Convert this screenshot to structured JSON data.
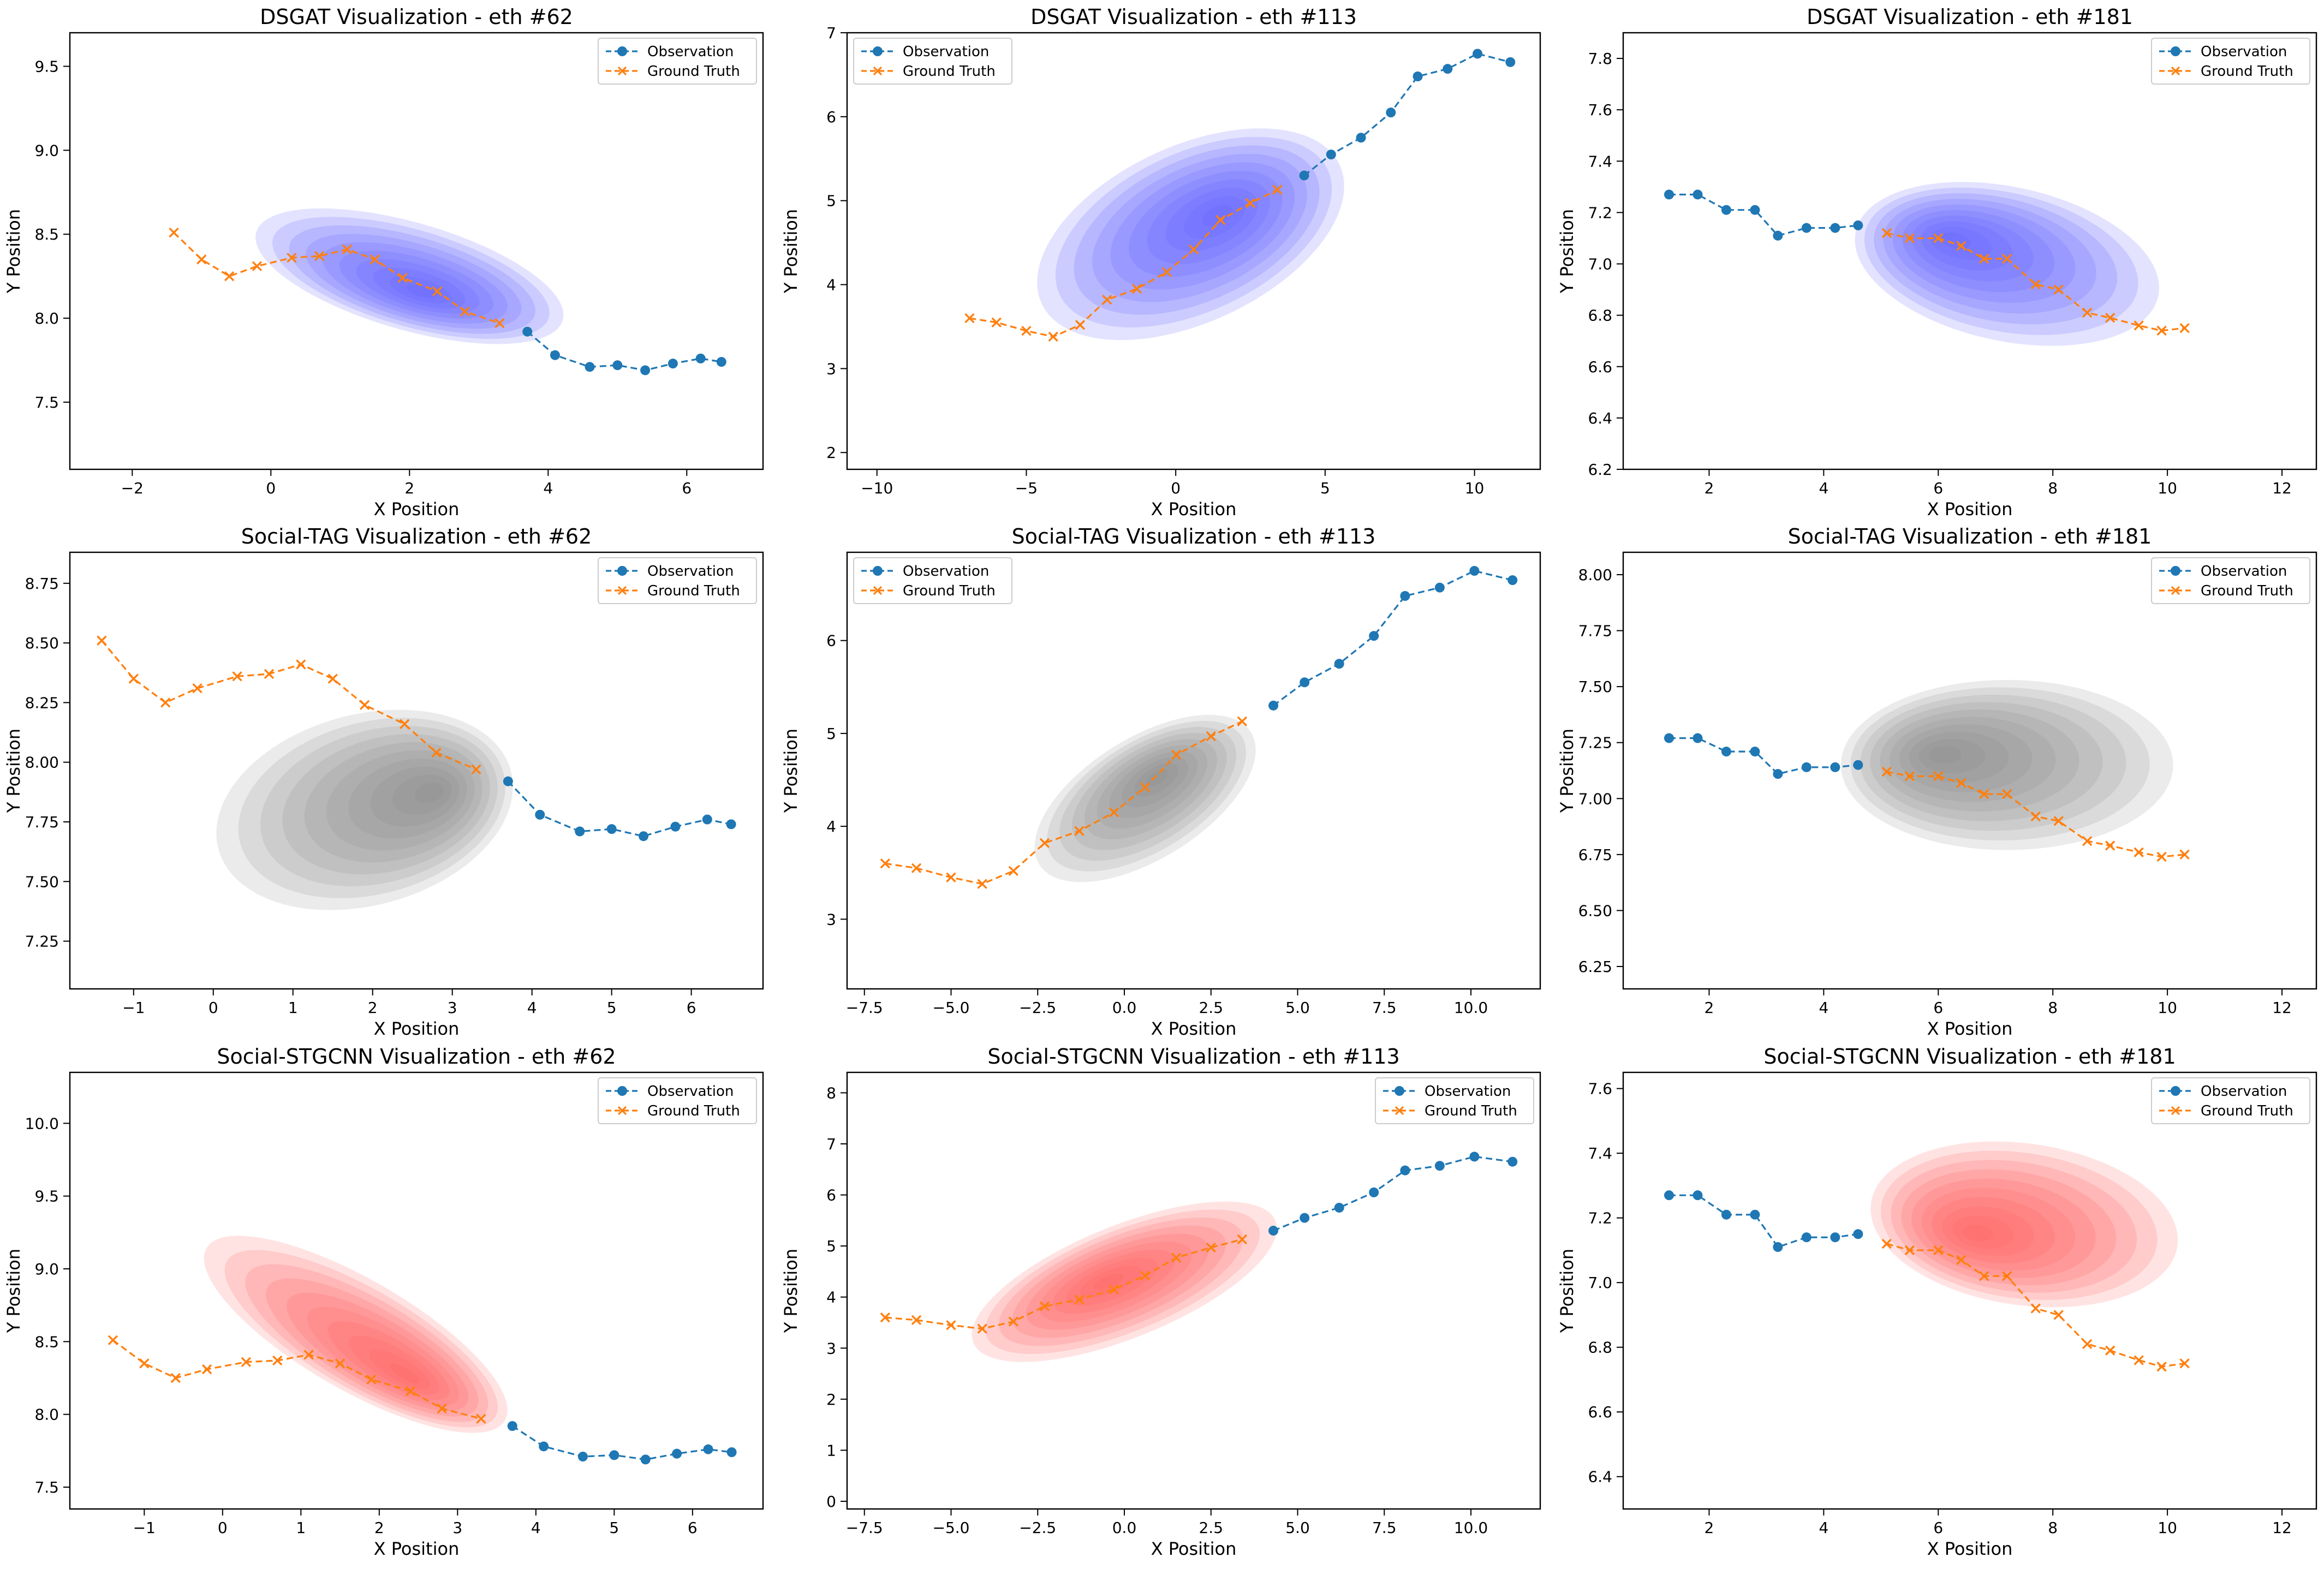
{
  "figure": {
    "observation_color": "#1f77b4",
    "ground_truth_color": "#ff7f0e"
  },
  "chart_data": [
    {
      "type": "line",
      "title": "DSGAT Visualization - eth #62",
      "xlabel": "X Position",
      "ylabel": "Y Position",
      "xlim": [
        -2.9,
        7.1
      ],
      "ylim": [
        7.1,
        9.7
      ],
      "xticks": [
        "−2",
        "0",
        "2",
        "4",
        "6"
      ],
      "xtick_values": [
        -2,
        0,
        2,
        4,
        6
      ],
      "yticks": [
        "7.5",
        "8.0",
        "8.5",
        "9.0",
        "9.5"
      ],
      "ytick_values": [
        7.5,
        8.0,
        8.5,
        9.0,
        9.5
      ],
      "density_color": "#5b5bff",
      "density": {
        "cx": 2.0,
        "cy": 8.25,
        "sx": 2.3,
        "sy": 0.32,
        "rot": -16,
        "peak": [
          2.2,
          8.15
        ]
      },
      "legend": {
        "position": "top-right",
        "entries": [
          "Observation",
          "Ground Truth"
        ]
      },
      "series": [
        {
          "name": "Observation",
          "marker": "o",
          "x": [
            3.7,
            4.1,
            4.6,
            5.0,
            5.4,
            5.8,
            6.2,
            6.5
          ],
          "y": [
            7.92,
            7.78,
            7.71,
            7.72,
            7.69,
            7.73,
            7.76,
            7.74
          ]
        },
        {
          "name": "Ground Truth",
          "marker": "x",
          "x": [
            -1.4,
            -1.0,
            -0.6,
            -0.2,
            0.3,
            0.7,
            1.1,
            1.5,
            1.9,
            2.4,
            2.8,
            3.3
          ],
          "y": [
            8.51,
            8.35,
            8.25,
            8.31,
            8.36,
            8.37,
            8.41,
            8.35,
            8.24,
            8.16,
            8.04,
            7.97
          ]
        }
      ]
    },
    {
      "type": "line",
      "title": "DSGAT Visualization - eth #113",
      "xlabel": "X Position",
      "ylabel": "Y Position",
      "xlim": [
        -11,
        12.2
      ],
      "ylim": [
        1.8,
        7.0
      ],
      "xticks": [
        "−10",
        "−5",
        "0",
        "5",
        "10"
      ],
      "xtick_values": [
        -10,
        -5,
        0,
        5,
        10
      ],
      "yticks": [
        "2",
        "3",
        "4",
        "5",
        "6",
        "7"
      ],
      "ytick_values": [
        2,
        3,
        4,
        5,
        6,
        7
      ],
      "density_color": "#5b5bff",
      "density": {
        "cx": 0.5,
        "cy": 4.6,
        "sx": 5.5,
        "sy": 1.05,
        "rot": 25,
        "peak": [
          1.5,
          4.85
        ]
      },
      "legend": {
        "position": "top-left",
        "entries": [
          "Observation",
          "Ground Truth"
        ]
      },
      "series": [
        {
          "name": "Observation",
          "marker": "o",
          "x": [
            4.3,
            5.2,
            6.2,
            7.2,
            8.1,
            9.1,
            10.1,
            11.2
          ],
          "y": [
            5.3,
            5.55,
            5.75,
            6.05,
            6.48,
            6.57,
            6.75,
            6.65
          ]
        },
        {
          "name": "Ground Truth",
          "marker": "x",
          "x": [
            -6.9,
            -6.0,
            -5.0,
            -4.1,
            -3.2,
            -2.3,
            -1.3,
            -0.3,
            0.6,
            1.5,
            2.5,
            3.4
          ],
          "y": [
            3.6,
            3.55,
            3.45,
            3.38,
            3.52,
            3.82,
            3.95,
            4.15,
            4.42,
            4.77,
            4.97,
            5.13
          ]
        }
      ]
    },
    {
      "type": "line",
      "title": "DSGAT Visualization - eth #181",
      "xlabel": "X Position",
      "ylabel": "Y Position",
      "xlim": [
        0.5,
        12.6
      ],
      "ylim": [
        6.2,
        7.9
      ],
      "xticks": [
        "2",
        "4",
        "6",
        "8",
        "10",
        "12"
      ],
      "xtick_values": [
        2,
        4,
        6,
        8,
        10,
        12
      ],
      "yticks": [
        "6.2",
        "6.4",
        "6.6",
        "6.8",
        "7.0",
        "7.2",
        "7.4",
        "7.6",
        "7.8"
      ],
      "ytick_values": [
        6.2,
        6.4,
        6.6,
        6.8,
        7.0,
        7.2,
        7.4,
        7.6,
        7.8
      ],
      "density_color": "#5b5bff",
      "density": {
        "cx": 7.2,
        "cy": 7.0,
        "sx": 2.7,
        "sy": 0.3,
        "rot": -12,
        "peak": [
          6.2,
          7.1
        ]
      },
      "legend": {
        "position": "top-right",
        "entries": [
          "Observation",
          "Ground Truth"
        ]
      },
      "series": [
        {
          "name": "Observation",
          "marker": "o",
          "x": [
            1.3,
            1.8,
            2.3,
            2.8,
            3.2,
            3.7,
            4.2,
            4.6
          ],
          "y": [
            7.27,
            7.27,
            7.21,
            7.21,
            7.11,
            7.14,
            7.14,
            7.15
          ]
        },
        {
          "name": "Ground Truth",
          "marker": "x",
          "x": [
            5.1,
            5.5,
            6.0,
            6.4,
            6.8,
            7.2,
            7.7,
            8.1,
            8.6,
            9.0,
            9.5,
            9.9,
            10.3
          ],
          "y": [
            7.12,
            7.1,
            7.1,
            7.07,
            7.02,
            7.02,
            6.92,
            6.9,
            6.81,
            6.79,
            6.76,
            6.74,
            6.75
          ]
        }
      ]
    },
    {
      "type": "line",
      "title": "Social-TAG Visualization - eth #62",
      "xlabel": "X Position",
      "ylabel": "Y Position",
      "xlim": [
        -1.8,
        6.9
      ],
      "ylim": [
        7.05,
        8.88
      ],
      "xticks": [
        "−1",
        "0",
        "1",
        "2",
        "3",
        "4",
        "5",
        "6"
      ],
      "xtick_values": [
        -1,
        0,
        1,
        2,
        3,
        4,
        5,
        6
      ],
      "yticks": [
        "7.25",
        "7.50",
        "7.75",
        "8.00",
        "8.25",
        "8.50",
        "8.75"
      ],
      "ytick_values": [
        7.25,
        7.5,
        7.75,
        8.0,
        8.25,
        8.5,
        8.75
      ],
      "density_color": "#8a8a8a",
      "density": {
        "cx": 1.9,
        "cy": 7.8,
        "sx": 1.9,
        "sy": 0.4,
        "rot": 15,
        "peak": [
          2.8,
          7.88
        ]
      },
      "legend": {
        "position": "top-right",
        "entries": [
          "Observation",
          "Ground Truth"
        ]
      },
      "series": [
        {
          "name": "Observation",
          "marker": "o",
          "x": [
            3.7,
            4.1,
            4.6,
            5.0,
            5.4,
            5.8,
            6.2,
            6.5
          ],
          "y": [
            7.92,
            7.78,
            7.71,
            7.72,
            7.69,
            7.73,
            7.76,
            7.74
          ]
        },
        {
          "name": "Ground Truth",
          "marker": "x",
          "x": [
            -1.4,
            -1.0,
            -0.6,
            -0.2,
            0.3,
            0.7,
            1.1,
            1.5,
            1.9,
            2.4,
            2.8,
            3.3
          ],
          "y": [
            8.51,
            8.35,
            8.25,
            8.31,
            8.36,
            8.37,
            8.41,
            8.35,
            8.24,
            8.16,
            8.04,
            7.97
          ]
        }
      ]
    },
    {
      "type": "line",
      "title": "Social-TAG Visualization - eth #113",
      "xlabel": "X Position",
      "ylabel": "Y Position",
      "xlim": [
        -8.0,
        12.0
      ],
      "ylim": [
        2.25,
        6.95
      ],
      "xticks": [
        "−7.5",
        "−5.0",
        "−2.5",
        "0.0",
        "2.5",
        "5.0",
        "7.5",
        "10.0"
      ],
      "xtick_values": [
        -7.5,
        -5,
        -2.5,
        0,
        2.5,
        5,
        7.5,
        10
      ],
      "yticks": [
        "3",
        "4",
        "5",
        "6"
      ],
      "ytick_values": [
        3,
        4,
        5,
        6
      ],
      "density_color": "#8a8a8a",
      "density": {
        "cx": 0.6,
        "cy": 4.3,
        "sx": 3.6,
        "sy": 0.65,
        "rot": 32,
        "peak": [
          1.0,
          4.55
        ]
      },
      "legend": {
        "position": "top-left",
        "entries": [
          "Observation",
          "Ground Truth"
        ]
      },
      "series": [
        {
          "name": "Observation",
          "marker": "o",
          "x": [
            4.3,
            5.2,
            6.2,
            7.2,
            8.1,
            9.1,
            10.1,
            11.2
          ],
          "y": [
            5.3,
            5.55,
            5.75,
            6.05,
            6.48,
            6.57,
            6.75,
            6.65
          ]
        },
        {
          "name": "Ground Truth",
          "marker": "x",
          "x": [
            -6.9,
            -6.0,
            -5.0,
            -4.1,
            -3.2,
            -2.3,
            -1.3,
            -0.3,
            0.6,
            1.5,
            2.5,
            3.4
          ],
          "y": [
            3.6,
            3.55,
            3.45,
            3.38,
            3.52,
            3.82,
            3.95,
            4.15,
            4.42,
            4.77,
            4.97,
            5.13
          ]
        }
      ]
    },
    {
      "type": "line",
      "title": "Social-TAG Visualization - eth #181",
      "xlabel": "X Position",
      "ylabel": "Y Position",
      "xlim": [
        0.5,
        12.6
      ],
      "ylim": [
        6.15,
        8.1
      ],
      "xticks": [
        "2",
        "4",
        "6",
        "8",
        "10",
        "12"
      ],
      "xtick_values": [
        2,
        4,
        6,
        8,
        10,
        12
      ],
      "yticks": [
        "6.25",
        "6.50",
        "6.75",
        "7.00",
        "7.25",
        "7.50",
        "7.75",
        "8.00"
      ],
      "ytick_values": [
        6.25,
        6.5,
        6.75,
        7.0,
        7.25,
        7.5,
        7.75,
        8.0
      ],
      "density_color": "#8a8a8a",
      "density": {
        "cx": 7.2,
        "cy": 7.15,
        "sx": 2.9,
        "sy": 0.38,
        "rot": 0,
        "peak": [
          6.0,
          7.2
        ]
      },
      "legend": {
        "position": "top-right",
        "entries": [
          "Observation",
          "Ground Truth"
        ]
      },
      "series": [
        {
          "name": "Observation",
          "marker": "o",
          "x": [
            1.3,
            1.8,
            2.3,
            2.8,
            3.2,
            3.7,
            4.2,
            4.6
          ],
          "y": [
            7.27,
            7.27,
            7.21,
            7.21,
            7.11,
            7.14,
            7.14,
            7.15
          ]
        },
        {
          "name": "Ground Truth",
          "marker": "x",
          "x": [
            5.1,
            5.5,
            6.0,
            6.4,
            6.8,
            7.2,
            7.7,
            8.1,
            8.6,
            9.0,
            9.5,
            9.9,
            10.3
          ],
          "y": [
            7.12,
            7.1,
            7.1,
            7.07,
            7.02,
            7.02,
            6.92,
            6.9,
            6.81,
            6.79,
            6.76,
            6.74,
            6.75
          ]
        }
      ]
    },
    {
      "type": "line",
      "title": "Social-STGCNN Visualization - eth #62",
      "xlabel": "X Position",
      "ylabel": "Y Position",
      "xlim": [
        -1.95,
        6.9
      ],
      "ylim": [
        7.35,
        10.35
      ],
      "xticks": [
        "−1",
        "0",
        "1",
        "2",
        "3",
        "4",
        "5",
        "6"
      ],
      "xtick_values": [
        -1,
        0,
        1,
        2,
        3,
        4,
        5,
        6
      ],
      "yticks": [
        "7.5",
        "8.0",
        "8.5",
        "9.0",
        "9.5",
        "10.0"
      ],
      "ytick_values": [
        7.5,
        8.0,
        8.5,
        9.0,
        9.5,
        10.0
      ],
      "density_color": "#ff5a5a",
      "density": {
        "cx": 1.7,
        "cy": 8.55,
        "sx": 2.2,
        "sy": 0.38,
        "rot": -30,
        "peak": [
          2.4,
          8.25
        ]
      },
      "legend": {
        "position": "top-right",
        "entries": [
          "Observation",
          "Ground Truth"
        ]
      },
      "series": [
        {
          "name": "Observation",
          "marker": "o",
          "x": [
            3.7,
            4.1,
            4.6,
            5.0,
            5.4,
            5.8,
            6.2,
            6.5
          ],
          "y": [
            7.92,
            7.78,
            7.71,
            7.72,
            7.69,
            7.73,
            7.76,
            7.74
          ]
        },
        {
          "name": "Ground Truth",
          "marker": "x",
          "x": [
            -1.4,
            -1.0,
            -0.6,
            -0.2,
            0.3,
            0.7,
            1.1,
            1.5,
            1.9,
            2.4,
            2.8,
            3.3
          ],
          "y": [
            8.51,
            8.35,
            8.25,
            8.31,
            8.36,
            8.37,
            8.41,
            8.35,
            8.24,
            8.16,
            8.04,
            7.97
          ]
        }
      ]
    },
    {
      "type": "line",
      "title": "Social-STGCNN Visualization - eth #113",
      "xlabel": "X Position",
      "ylabel": "Y Position",
      "xlim": [
        -8.0,
        12.0
      ],
      "ylim": [
        -0.15,
        8.4
      ],
      "xticks": [
        "−7.5",
        "−5.0",
        "−2.5",
        "0.0",
        "2.5",
        "5.0",
        "7.5",
        "10.0"
      ],
      "xtick_values": [
        -7.5,
        -5,
        -2.5,
        0,
        2.5,
        5,
        7.5,
        10
      ],
      "yticks": [
        "0",
        "1",
        "2",
        "3",
        "4",
        "5",
        "6",
        "7",
        "8"
      ],
      "ytick_values": [
        0,
        1,
        2,
        3,
        4,
        5,
        6,
        7,
        8
      ],
      "density_color": "#ff5a5a",
      "density": {
        "cx": 0.0,
        "cy": 4.3,
        "sx": 4.7,
        "sy": 1.1,
        "rot": 22,
        "peak": [
          -0.5,
          4.3
        ]
      },
      "legend": {
        "position": "top-right",
        "entries": [
          "Observation",
          "Ground Truth"
        ]
      },
      "series": [
        {
          "name": "Observation",
          "marker": "o",
          "x": [
            4.3,
            5.2,
            6.2,
            7.2,
            8.1,
            9.1,
            10.1,
            11.2
          ],
          "y": [
            5.3,
            5.55,
            5.75,
            6.05,
            6.48,
            6.57,
            6.75,
            6.65
          ]
        },
        {
          "name": "Ground Truth",
          "marker": "x",
          "x": [
            -6.9,
            -6.0,
            -5.0,
            -4.1,
            -3.2,
            -2.3,
            -1.3,
            -0.3,
            0.6,
            1.5,
            2.5,
            3.4
          ],
          "y": [
            3.6,
            3.55,
            3.45,
            3.38,
            3.52,
            3.82,
            3.95,
            4.15,
            4.42,
            4.77,
            4.97,
            5.13
          ]
        }
      ]
    },
    {
      "type": "line",
      "title": "Social-STGCNN Visualization - eth #181",
      "xlabel": "X Position",
      "ylabel": "Y Position",
      "xlim": [
        0.5,
        12.6
      ],
      "ylim": [
        6.3,
        7.65
      ],
      "xticks": [
        "2",
        "4",
        "6",
        "8",
        "10",
        "12"
      ],
      "xtick_values": [
        2,
        4,
        6,
        8,
        10,
        12
      ],
      "yticks": [
        "6.4",
        "6.6",
        "6.8",
        "7.0",
        "7.2",
        "7.4",
        "7.6"
      ],
      "ytick_values": [
        6.4,
        6.6,
        6.8,
        7.0,
        7.2,
        7.4,
        7.6
      ],
      "density_color": "#ff5a5a",
      "density": {
        "cx": 7.5,
        "cy": 7.18,
        "sx": 2.7,
        "sy": 0.25,
        "rot": -8,
        "peak": [
          6.6,
          7.15
        ]
      },
      "legend": {
        "position": "top-right",
        "entries": [
          "Observation",
          "Ground Truth"
        ]
      },
      "series": [
        {
          "name": "Observation",
          "marker": "o",
          "x": [
            1.3,
            1.8,
            2.3,
            2.8,
            3.2,
            3.7,
            4.2,
            4.6
          ],
          "y": [
            7.27,
            7.27,
            7.21,
            7.21,
            7.11,
            7.14,
            7.14,
            7.15
          ]
        },
        {
          "name": "Ground Truth",
          "marker": "x",
          "x": [
            5.1,
            5.5,
            6.0,
            6.4,
            6.8,
            7.2,
            7.7,
            8.1,
            8.6,
            9.0,
            9.5,
            9.9,
            10.3
          ],
          "y": [
            7.12,
            7.1,
            7.1,
            7.07,
            7.02,
            7.02,
            6.92,
            6.9,
            6.81,
            6.79,
            6.76,
            6.74,
            6.75
          ]
        }
      ]
    }
  ]
}
